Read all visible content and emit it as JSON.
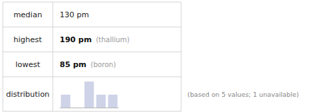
{
  "chart_data": {
    "type": "bar",
    "annotations": [
      "median",
      "130 pm",
      "highest",
      "190 pm",
      "(thallium)",
      "lowest",
      "85 pm",
      "(boron)",
      "distribution",
      "(based on 5 values; 1 unavailable)"
    ],
    "categories": [
      null,
      null,
      null,
      null,
      null
    ],
    "values": [
      1,
      0,
      2,
      1,
      1
    ],
    "color": "#ced3e8",
    "ylim": [
      0,
      2.1
    ],
    "tick_labels": false,
    "grid": false
  }
}
